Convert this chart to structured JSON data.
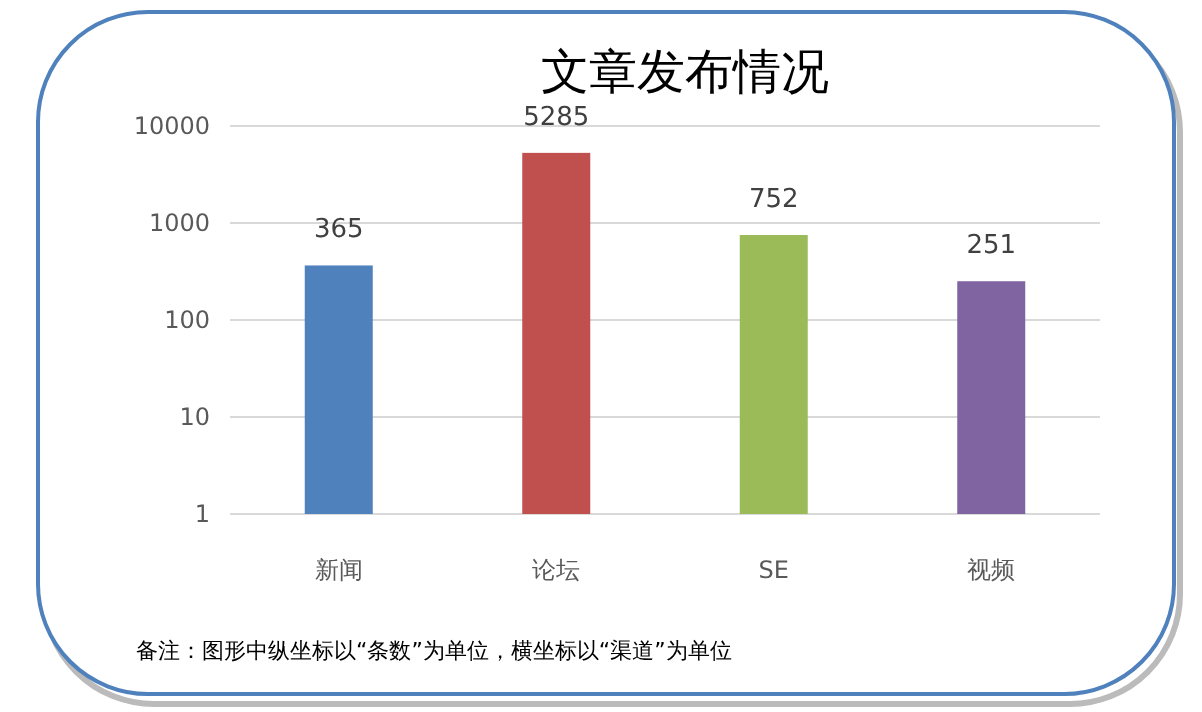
{
  "chart_data": {
    "type": "bar",
    "title": "文章发布情况",
    "categories": [
      "新闻",
      "论坛",
      "SE",
      "视频"
    ],
    "values": [
      365,
      5285,
      752,
      251
    ],
    "colors": [
      "#4f81bd",
      "#c0504d",
      "#9bbb59",
      "#8064a2"
    ],
    "log": true,
    "ylim": [
      1,
      10000
    ],
    "yticks": [
      1,
      10,
      100,
      1000,
      10000
    ],
    "grid": "y",
    "data_labels": true,
    "annotations": [
      "备注：图形中纵坐标以“条数”为单位，横坐标以“渠道”为单位"
    ]
  }
}
